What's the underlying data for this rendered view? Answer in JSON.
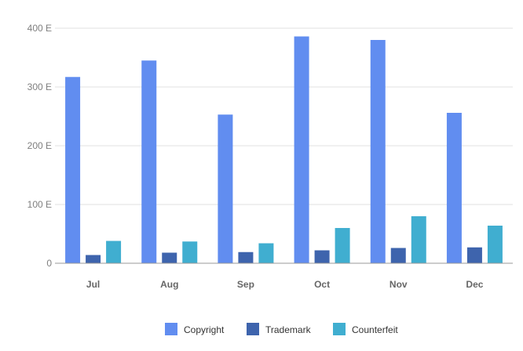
{
  "chart_data": {
    "type": "bar",
    "categories": [
      "Jul",
      "Aug",
      "Sep",
      "Oct",
      "Nov",
      "Dec"
    ],
    "series": [
      {
        "name": "Copyright",
        "color": "#618df0",
        "values": [
          317,
          345,
          253,
          386,
          380,
          256
        ]
      },
      {
        "name": "Trademark",
        "color": "#3e64ad",
        "values": [
          14,
          18,
          19,
          22,
          26,
          27
        ]
      },
      {
        "name": "Counterfeit",
        "color": "#40aed0",
        "values": [
          38,
          37,
          34,
          60,
          80,
          64
        ]
      }
    ],
    "yticks": [
      {
        "value": 0,
        "label": "0"
      },
      {
        "value": 100,
        "label": "100 E"
      },
      {
        "value": 200,
        "label": "200 E"
      },
      {
        "value": 300,
        "label": "300 E"
      },
      {
        "value": 400,
        "label": "400 E"
      }
    ],
    "ylim": [
      0,
      400
    ],
    "grid": true,
    "legend_position": "bottom"
  }
}
